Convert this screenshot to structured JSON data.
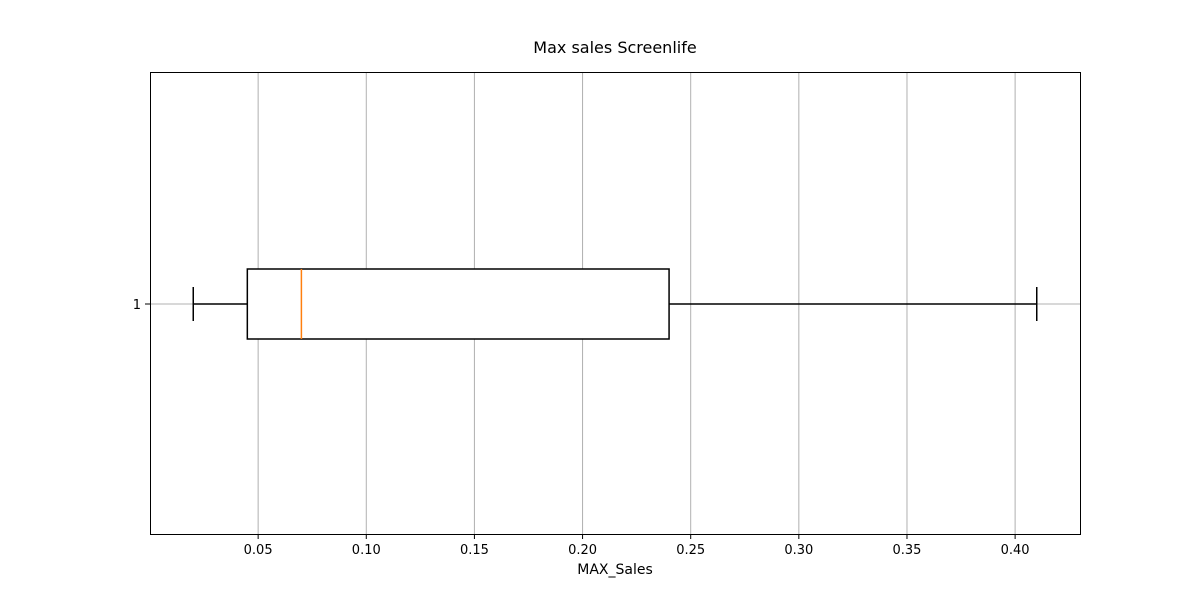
{
  "chart_data": {
    "type": "boxplot",
    "orientation": "horizontal",
    "title": "Max sales Screenlife",
    "xlabel": "MAX_Sales",
    "ylabel": "",
    "xlim": [
      0.0,
      0.43
    ],
    "xticks": [
      0.05,
      0.1,
      0.15,
      0.2,
      0.25,
      0.3,
      0.35,
      0.4
    ],
    "xtick_labels": [
      "0.05",
      "0.10",
      "0.15",
      "0.20",
      "0.25",
      "0.30",
      "0.35",
      "0.40"
    ],
    "yticks": [
      1
    ],
    "ytick_labels": [
      "1"
    ],
    "grid": true,
    "boxes": [
      {
        "position": 1,
        "whisker_low": 0.02,
        "q1": 0.045,
        "median": 0.07,
        "q3": 0.24,
        "whisker_high": 0.41
      }
    ],
    "colors": {
      "box": "#000000",
      "median": "#ff7f0e",
      "grid": "#b0b0b0"
    }
  }
}
